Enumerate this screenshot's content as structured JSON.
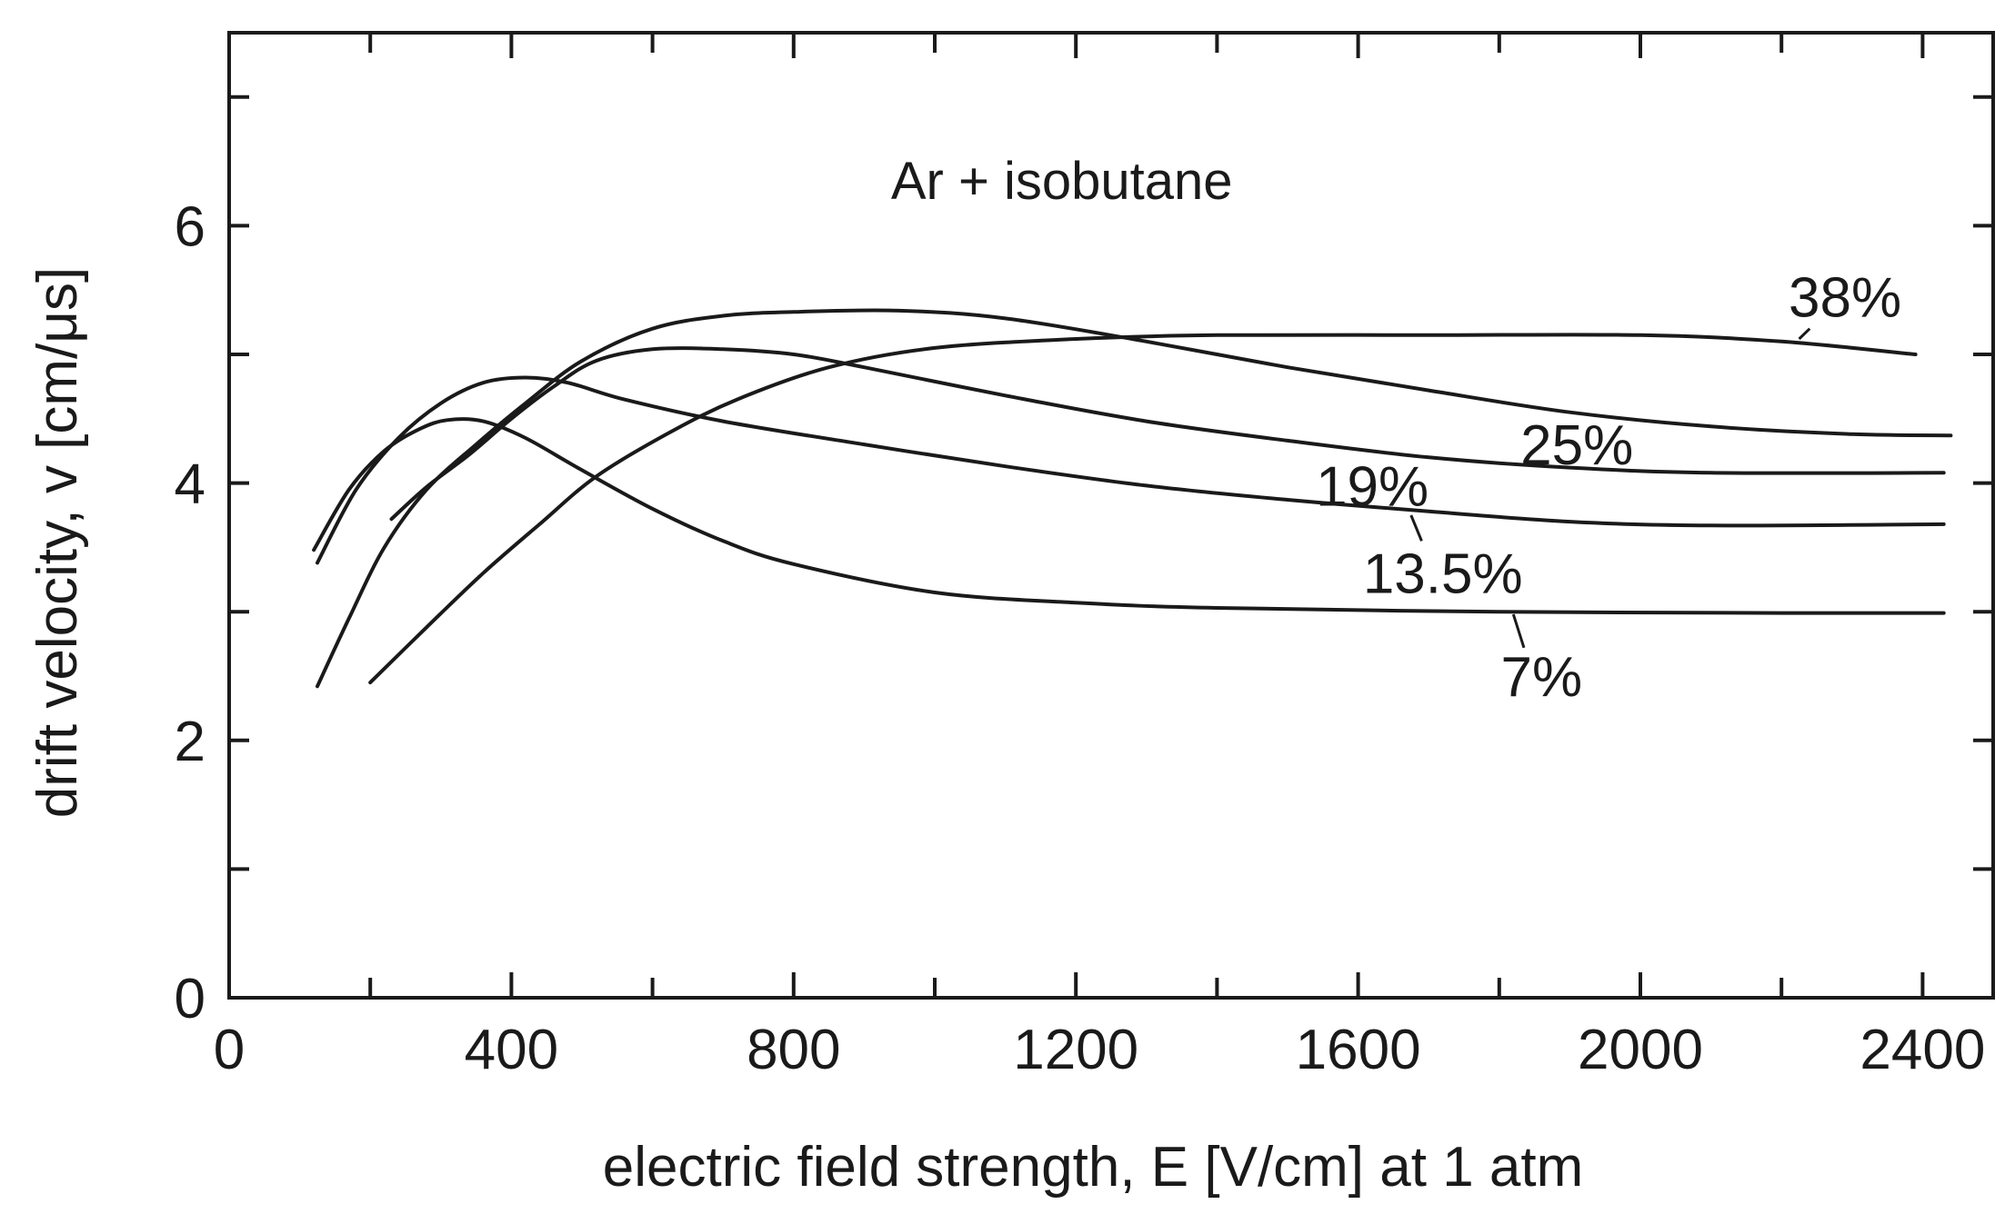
{
  "chart_data": {
    "type": "line",
    "title": "Ar + isobutane",
    "xlabel": "electric field strength, E  [V/cm] at 1 atm",
    "ylabel": "drift velocity, v [cm/μs]",
    "xlim": [
      0,
      2500
    ],
    "ylim": [
      0,
      7.5
    ],
    "x_ticks": [
      0,
      400,
      800,
      1200,
      1600,
      2000,
      2400
    ],
    "y_ticks": [
      0,
      2,
      4,
      6
    ],
    "grid": false,
    "legend": "none",
    "series": [
      {
        "name": "7%",
        "points": [
          [
            120,
            3.48
          ],
          [
            170,
            3.95
          ],
          [
            220,
            4.25
          ],
          [
            270,
            4.42
          ],
          [
            310,
            4.49
          ],
          [
            360,
            4.48
          ],
          [
            420,
            4.35
          ],
          [
            500,
            4.1
          ],
          [
            600,
            3.8
          ],
          [
            700,
            3.55
          ],
          [
            800,
            3.37
          ],
          [
            1000,
            3.15
          ],
          [
            1200,
            3.07
          ],
          [
            1400,
            3.03
          ],
          [
            1800,
            3.0
          ],
          [
            2200,
            2.99
          ],
          [
            2430,
            2.99
          ]
        ]
      },
      {
        "name": "13.5%",
        "points": [
          [
            125,
            3.38
          ],
          [
            180,
            3.95
          ],
          [
            240,
            4.35
          ],
          [
            300,
            4.62
          ],
          [
            360,
            4.78
          ],
          [
            420,
            4.82
          ],
          [
            480,
            4.78
          ],
          [
            560,
            4.65
          ],
          [
            700,
            4.48
          ],
          [
            900,
            4.3
          ],
          [
            1100,
            4.13
          ],
          [
            1300,
            3.98
          ],
          [
            1500,
            3.87
          ],
          [
            1700,
            3.78
          ],
          [
            1900,
            3.7
          ],
          [
            2100,
            3.67
          ],
          [
            2430,
            3.68
          ]
        ]
      },
      {
        "name": "19%",
        "points": [
          [
            230,
            3.72
          ],
          [
            280,
            3.97
          ],
          [
            340,
            4.22
          ],
          [
            400,
            4.5
          ],
          [
            460,
            4.75
          ],
          [
            520,
            4.95
          ],
          [
            600,
            5.04
          ],
          [
            700,
            5.04
          ],
          [
            800,
            5.0
          ],
          [
            900,
            4.9
          ],
          [
            1100,
            4.68
          ],
          [
            1300,
            4.48
          ],
          [
            1500,
            4.33
          ],
          [
            1700,
            4.2
          ],
          [
            1900,
            4.12
          ],
          [
            2100,
            4.08
          ],
          [
            2430,
            4.08
          ]
        ]
      },
      {
        "name": "25%",
        "points": [
          [
            125,
            2.42
          ],
          [
            170,
            2.95
          ],
          [
            220,
            3.5
          ],
          [
            280,
            3.95
          ],
          [
            350,
            4.3
          ],
          [
            420,
            4.62
          ],
          [
            500,
            4.95
          ],
          [
            600,
            5.2
          ],
          [
            700,
            5.3
          ],
          [
            800,
            5.33
          ],
          [
            950,
            5.34
          ],
          [
            1100,
            5.28
          ],
          [
            1300,
            5.1
          ],
          [
            1500,
            4.9
          ],
          [
            1700,
            4.72
          ],
          [
            1900,
            4.55
          ],
          [
            2100,
            4.44
          ],
          [
            2300,
            4.38
          ],
          [
            2440,
            4.37
          ]
        ]
      },
      {
        "name": "38%",
        "points": [
          [
            200,
            2.45
          ],
          [
            280,
            2.88
          ],
          [
            360,
            3.3
          ],
          [
            440,
            3.68
          ],
          [
            520,
            4.05
          ],
          [
            620,
            4.38
          ],
          [
            720,
            4.65
          ],
          [
            850,
            4.9
          ],
          [
            1000,
            5.05
          ],
          [
            1200,
            5.12
          ],
          [
            1400,
            5.15
          ],
          [
            1700,
            5.15
          ],
          [
            2000,
            5.15
          ],
          [
            2200,
            5.1
          ],
          [
            2390,
            5.0
          ]
        ]
      }
    ],
    "series_label_positions": [
      {
        "name": "7%",
        "x": 1860,
        "y": 2.5,
        "leader": [
          [
            1835,
            2.72
          ],
          [
            1820,
            2.98
          ]
        ]
      },
      {
        "name": "13.5%",
        "x": 1720,
        "y": 3.3,
        "leader": [
          [
            1690,
            3.55
          ],
          [
            1675,
            3.75
          ]
        ]
      },
      {
        "name": "19%",
        "x": 1620,
        "y": 3.98
      },
      {
        "name": "25%",
        "x": 1910,
        "y": 4.3
      },
      {
        "name": "38%",
        "x": 2290,
        "y": 5.45,
        "leader": [
          [
            2240,
            5.2
          ],
          [
            2225,
            5.12
          ]
        ]
      }
    ],
    "title_position": {
      "x": 1180,
      "y": 6.35
    }
  }
}
